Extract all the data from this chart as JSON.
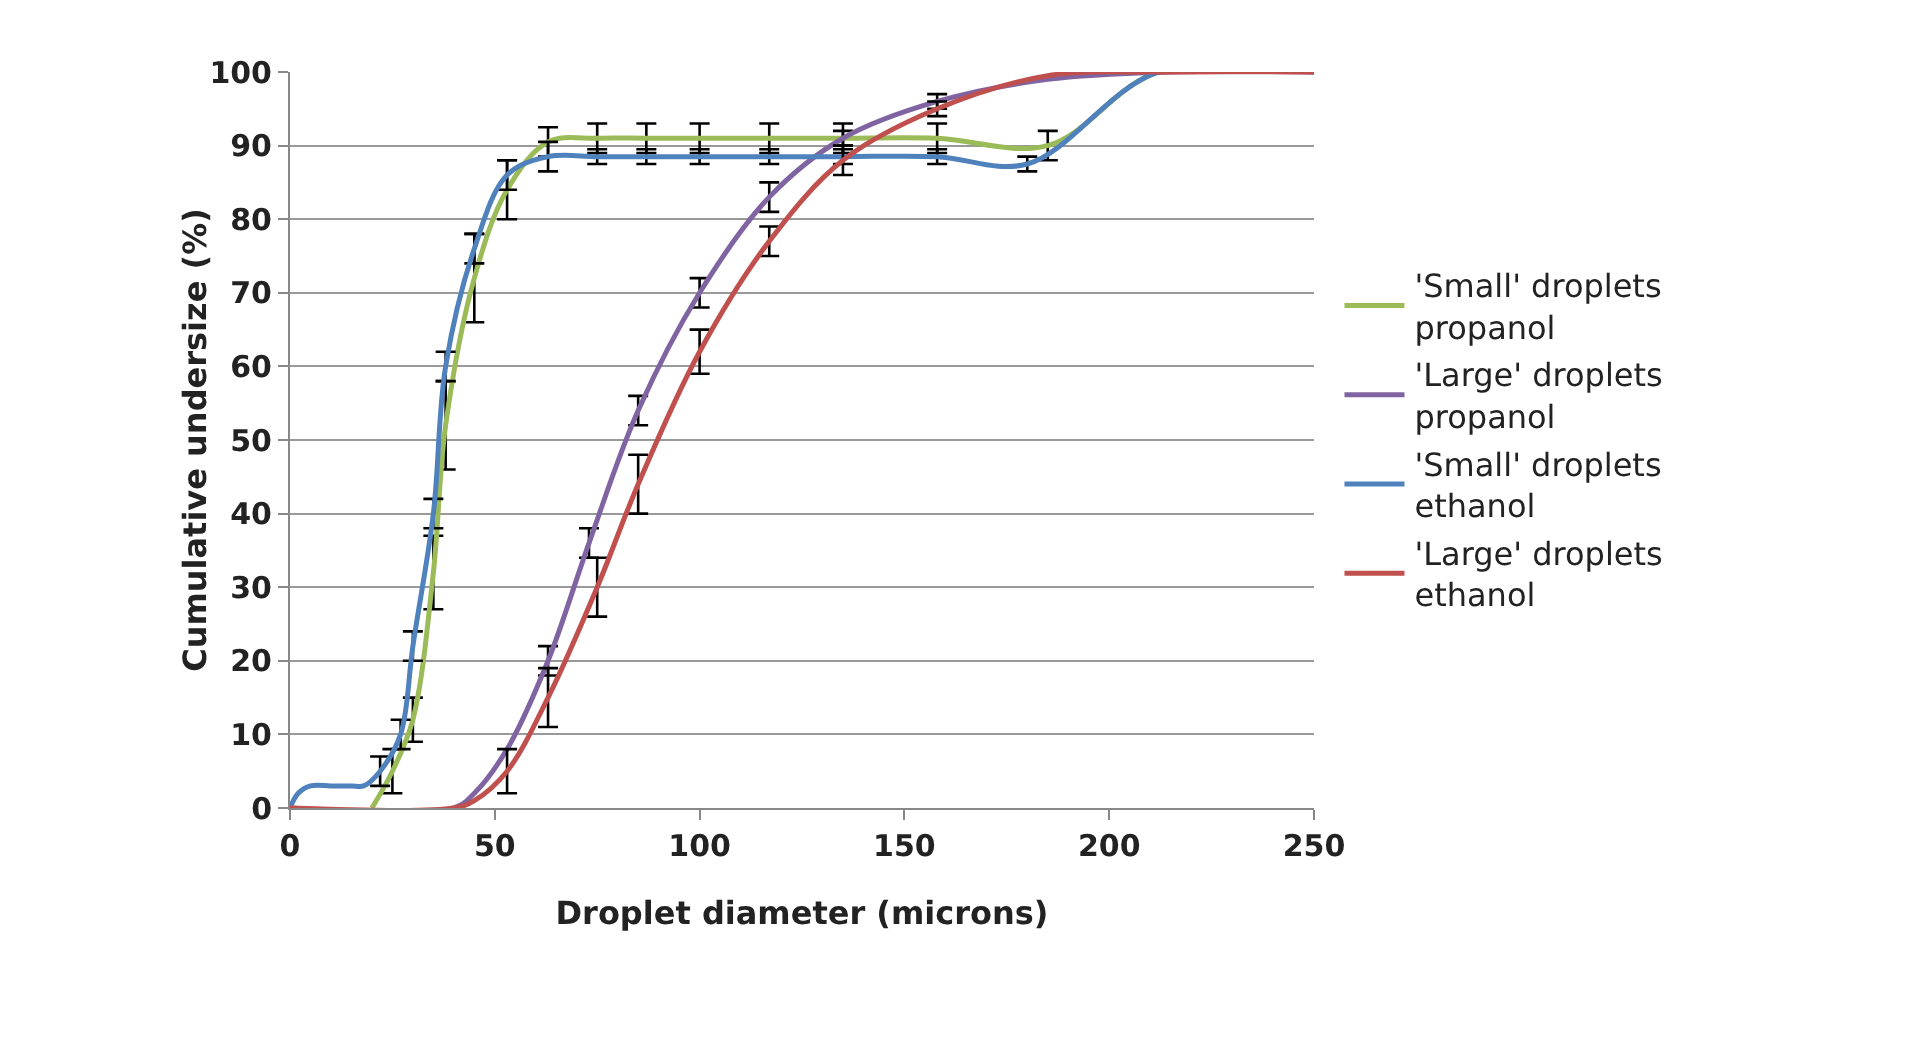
{
  "chart_data": {
    "type": "line",
    "xlabel": "Droplet diameter (microns)",
    "ylabel": "Cumulative undersize (%)",
    "xlim": [
      0,
      250
    ],
    "xticks": [
      0,
      50,
      100,
      150,
      200,
      250
    ],
    "ylim": [
      0,
      100
    ],
    "yticks": [
      0,
      10,
      20,
      30,
      40,
      50,
      60,
      70,
      80,
      90,
      100
    ],
    "grid": "y",
    "legend": "right",
    "line_style": "solid",
    "series": [
      {
        "name": "'Small' droplets propanol",
        "color": "#9bbb59",
        "x": [
          20,
          25,
          30,
          35,
          38,
          45,
          53,
          63,
          75,
          87,
          100,
          117,
          135,
          158,
          185,
          212,
          250
        ],
        "values": [
          0,
          5,
          12,
          32,
          52,
          72,
          84,
          90.5,
          91,
          91,
          91,
          91,
          91,
          91,
          90,
          100,
          100
        ],
        "errors": [
          null,
          3,
          3,
          5,
          6,
          6,
          4,
          2,
          2,
          2,
          2,
          2,
          2,
          2,
          2,
          null,
          null
        ]
      },
      {
        "name": "'Large' droplets propanol",
        "color": "#8064a2",
        "x": [
          0,
          40,
          45,
          53,
          63,
          73,
          85,
          100,
          117,
          135,
          158,
          185,
          215,
          250
        ],
        "values": [
          0,
          0,
          2,
          8,
          20,
          36,
          54,
          70,
          83,
          91,
          96,
          99,
          100,
          100
        ],
        "errors": [
          null,
          null,
          null,
          null,
          2,
          2,
          2,
          2,
          2,
          1,
          1,
          null,
          null,
          null
        ]
      },
      {
        "name": "'Small' droplets ethanol",
        "color": "#4f81bd",
        "x": [
          0,
          2,
          5,
          10,
          15,
          18,
          22,
          27,
          30,
          35,
          38,
          45,
          53,
          63,
          75,
          87,
          100,
          117,
          135,
          158,
          180,
          212,
          250
        ],
        "values": [
          0,
          2,
          3,
          3,
          3,
          3,
          5,
          10,
          22,
          40,
          60,
          76,
          86,
          88.5,
          88.5,
          88.5,
          88.5,
          88.5,
          88.5,
          88.5,
          87.5,
          100,
          100
        ],
        "errors": [
          null,
          null,
          null,
          null,
          null,
          null,
          2,
          2,
          2,
          2,
          2,
          2,
          2,
          2,
          1,
          1,
          1,
          1,
          1,
          1,
          1,
          null,
          null
        ]
      },
      {
        "name": "'Large' droplets ethanol",
        "color": "#c0504d",
        "x": [
          0,
          40,
          45,
          53,
          63,
          75,
          85,
          100,
          117,
          135,
          158,
          185,
          215,
          250
        ],
        "values": [
          0,
          0,
          1,
          5,
          15,
          30,
          44,
          62,
          77,
          88,
          95,
          99.5,
          100,
          100
        ],
        "errors": [
          null,
          null,
          null,
          3,
          4,
          4,
          4,
          3,
          2,
          2,
          1,
          null,
          null,
          null
        ]
      }
    ]
  }
}
